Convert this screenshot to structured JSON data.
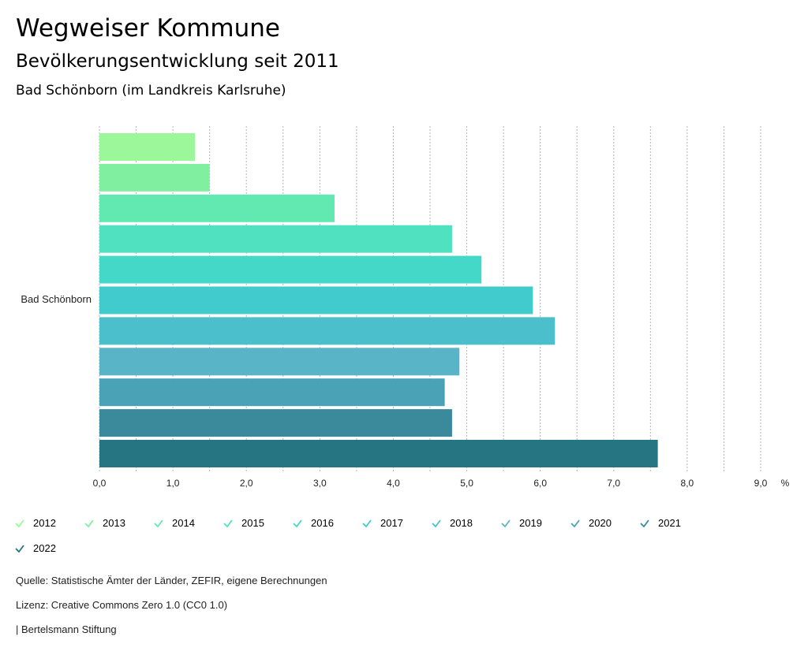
{
  "header": {
    "title": "Wegweiser Kommune",
    "subtitle": "Bevölkerungsentwicklung seit 2011",
    "region": "Bad Schönborn (im Landkreis Karlsruhe)"
  },
  "chart_data": {
    "type": "bar",
    "orientation": "horizontal",
    "categories": [
      "Bad Schönborn"
    ],
    "series": [
      {
        "name": "2012",
        "values": [
          1.3
        ],
        "color": "#9cf79a"
      },
      {
        "name": "2013",
        "values": [
          1.5
        ],
        "color": "#80f0a0"
      },
      {
        "name": "2014",
        "values": [
          3.2
        ],
        "color": "#62e9b2"
      },
      {
        "name": "2015",
        "values": [
          4.8
        ],
        "color": "#50e1c0"
      },
      {
        "name": "2016",
        "values": [
          5.2
        ],
        "color": "#44d8c8"
      },
      {
        "name": "2017",
        "values": [
          5.9
        ],
        "color": "#42cbcc"
      },
      {
        "name": "2018",
        "values": [
          6.2
        ],
        "color": "#4bbfcc"
      },
      {
        "name": "2019",
        "values": [
          4.9
        ],
        "color": "#5ab4c8"
      },
      {
        "name": "2020",
        "values": [
          4.7
        ],
        "color": "#4aa2b6"
      },
      {
        "name": "2021",
        "values": [
          4.8
        ],
        "color": "#3a8a9c"
      },
      {
        "name": "2022",
        "values": [
          7.6
        ],
        "color": "#267583"
      }
    ],
    "xlim": [
      0,
      9
    ],
    "xticks": [
      "0,0",
      "1,0",
      "2,0",
      "3,0",
      "4,0",
      "5,0",
      "6,0",
      "7,0",
      "8,0",
      "9,0"
    ],
    "unit": "%",
    "grid": true,
    "legend_position": "bottom"
  },
  "footer": {
    "source": "Quelle: Statistische Ämter der Länder, ZEFIR, eigene Berechnungen",
    "license": "Lizenz: Creative Commons Zero 1.0 (CC0 1.0)",
    "publisher": "| Bertelsmann Stiftung"
  }
}
